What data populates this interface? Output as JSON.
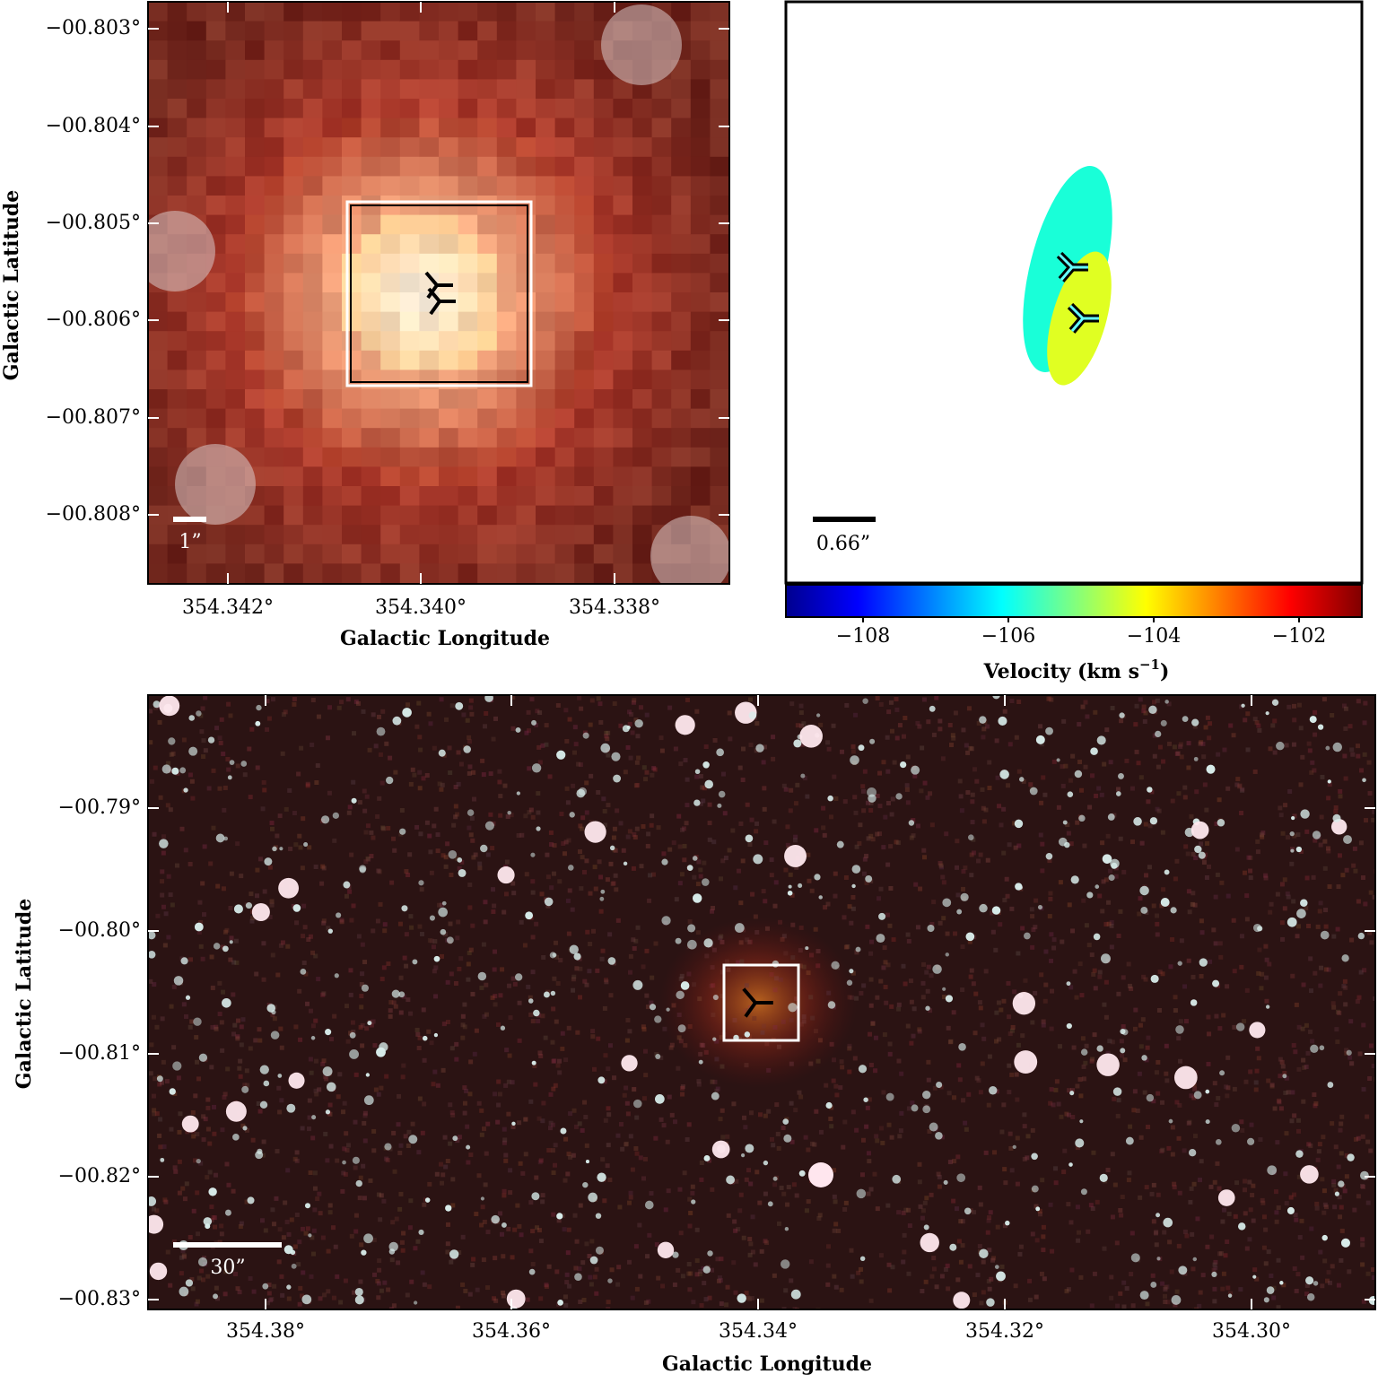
{
  "top_left": {
    "y_ticks": [
      "−00.803°",
      "−00.804°",
      "−00.805°",
      "−00.806°",
      "−00.807°",
      "−00.808°"
    ],
    "x_ticks": [
      "354.342°",
      "354.340°",
      "354.338°"
    ],
    "x_label": "Galactic Longitude",
    "y_label": "Galactic Latitude",
    "scale_bar": "1”"
  },
  "top_right": {
    "scale_bar": "0.66”",
    "colorbar": {
      "ticks": [
        "−108",
        "−106",
        "−104",
        "−102"
      ],
      "label": "Velocity (km s",
      "label_sup": "−1",
      "label_end": ")"
    }
  },
  "bottom": {
    "y_ticks": [
      "−00.79°",
      "−00.80°",
      "−00.81°",
      "−00.82°",
      "−00.83°"
    ],
    "x_ticks": [
      "354.38°",
      "354.36°",
      "354.34°",
      "354.32°",
      "354.30°"
    ],
    "x_label": "Galactic Longitude",
    "y_label": "Galactic Latitude",
    "scale_bar": "30”"
  }
}
